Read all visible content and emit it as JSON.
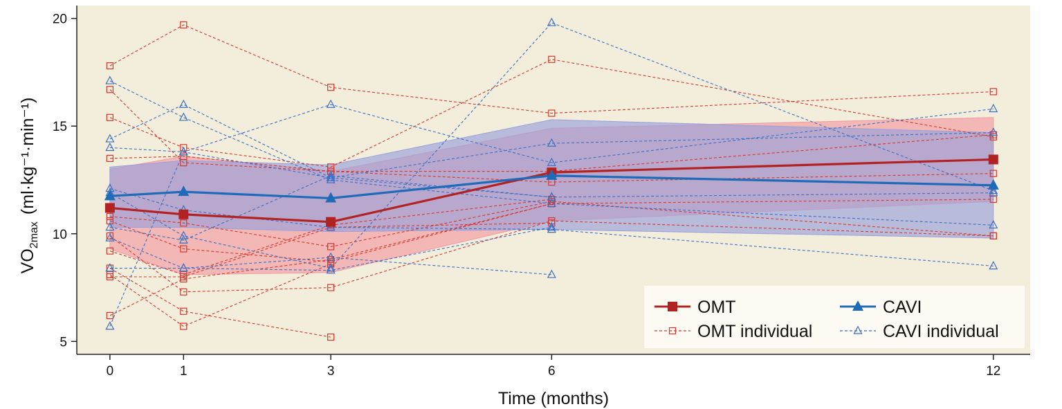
{
  "chart_data": {
    "type": "line",
    "xlabel": "Time (months)",
    "ylabel": {
      "base": "VO",
      "sub": "2max",
      "unit": "(ml·kg⁻¹·min⁻¹)"
    },
    "x_ticks": [
      0,
      1,
      3,
      6,
      12
    ],
    "y_ticks": [
      5,
      10,
      15,
      20
    ],
    "xlim": [
      -0.45,
      12.5
    ],
    "ylim": [
      4.4,
      20.6
    ],
    "colors": {
      "background": "#f2eedb",
      "omt": "#b22222",
      "omt_individual": "#d9352a",
      "omt_band": "#f29aa2",
      "cavi": "#1f6bb8",
      "cavi_individual": "#3a6fc4",
      "cavi_band": "#9aa0db"
    },
    "series": [
      {
        "name": "OMT",
        "x": [
          0,
          1,
          3,
          6,
          12
        ],
        "values": [
          11.2,
          10.9,
          10.55,
          12.85,
          13.45
        ],
        "band_lower": [
          9.3,
          8.1,
          8.2,
          10.6,
          11.5
        ],
        "band_upper": [
          13.0,
          13.6,
          12.9,
          14.9,
          15.4
        ]
      },
      {
        "name": "CAVI",
        "x": [
          0,
          1,
          3,
          6,
          12
        ],
        "values": [
          11.75,
          11.95,
          11.65,
          12.7,
          12.25
        ],
        "band_lower": [
          10.3,
          10.3,
          10.1,
          10.2,
          9.8
        ],
        "band_upper": [
          13.1,
          13.4,
          13.2,
          15.3,
          14.7
        ]
      }
    ],
    "omt_individual": [
      [
        [
          0,
          17.8
        ],
        [
          1,
          19.7
        ],
        [
          3,
          16.8
        ],
        [
          6,
          15.6
        ],
        [
          12,
          16.6
        ]
      ],
      [
        [
          0,
          16.7
        ],
        [
          1,
          13.3
        ],
        [
          3,
          12.9
        ],
        [
          6,
          12.4
        ],
        [
          12,
          12.8
        ]
      ],
      [
        [
          0,
          15.4
        ],
        [
          1,
          14.0
        ],
        [
          3,
          13.1
        ],
        [
          6,
          18.1
        ],
        [
          12,
          14.5
        ]
      ],
      [
        [
          0,
          13.5
        ],
        [
          1,
          13.6
        ],
        [
          3,
          12.9
        ],
        [
          6,
          12.9
        ],
        [
          12,
          14.6
        ]
      ],
      [
        [
          0,
          10.8
        ],
        [
          1,
          10.5
        ],
        [
          3,
          9.4
        ],
        [
          6,
          11.5
        ],
        [
          12,
          9.9
        ]
      ],
      [
        [
          0,
          10.6
        ],
        [
          1,
          9.3
        ],
        [
          3,
          8.7
        ],
        [
          6,
          11.4
        ],
        [
          12,
          11.6
        ]
      ],
      [
        [
          0,
          9.9
        ],
        [
          1,
          7.3
        ],
        [
          3,
          7.5
        ],
        [
          6,
          10.6
        ],
        [
          12,
          9.9
        ]
      ],
      [
        [
          0,
          9.2
        ],
        [
          1,
          8.1
        ],
        [
          3,
          10.4
        ],
        [
          6,
          11.6
        ]
      ],
      [
        [
          0,
          8.4
        ],
        [
          1,
          6.4
        ],
        [
          3,
          5.2
        ]
      ],
      [
        [
          0,
          8.1
        ],
        [
          1,
          5.7
        ],
        [
          3,
          8.6
        ]
      ],
      [
        [
          0,
          8.0
        ],
        [
          1,
          8.0
        ],
        [
          3,
          10.3
        ],
        [
          6,
          10.5
        ]
      ],
      [
        [
          0,
          6.2
        ],
        [
          1,
          7.9
        ],
        [
          3,
          8.8
        ],
        [
          6,
          11.4
        ]
      ]
    ],
    "cavi_individual": [
      [
        [
          0,
          17.1
        ],
        [
          1,
          15.4
        ],
        [
          3,
          12.5
        ],
        [
          6,
          11.4
        ],
        [
          12,
          10.4
        ]
      ],
      [
        [
          0,
          14.4
        ],
        [
          1,
          16.0
        ],
        [
          3,
          12.6
        ],
        [
          6,
          14.2
        ],
        [
          12,
          14.7
        ]
      ],
      [
        [
          0,
          14.0
        ],
        [
          1,
          13.8
        ],
        [
          3,
          16.0
        ],
        [
          6,
          13.3
        ],
        [
          12,
          15.8
        ]
      ],
      [
        [
          0,
          12.1
        ],
        [
          1,
          11.1
        ],
        [
          3,
          10.3
        ],
        [
          6,
          10.2
        ],
        [
          12,
          8.5
        ]
      ],
      [
        [
          0,
          11.9
        ],
        [
          1,
          9.9
        ],
        [
          3,
          8.4
        ],
        [
          6,
          19.8
        ],
        [
          12,
          12.0
        ]
      ],
      [
        [
          0,
          10.3
        ],
        [
          1,
          9.7
        ],
        [
          3,
          12.7
        ],
        [
          6,
          11.7
        ],
        [
          12,
          11.9
        ]
      ],
      [
        [
          0,
          9.8
        ],
        [
          1,
          8.4
        ],
        [
          3,
          8.9
        ],
        [
          6,
          8.1
        ]
      ],
      [
        [
          0,
          8.4
        ],
        [
          1,
          8.4
        ],
        [
          3,
          8.3
        ],
        [
          6,
          10.3
        ]
      ],
      [
        [
          0,
          5.7
        ],
        [
          1,
          13.8
        ],
        [
          3,
          12.6
        ],
        [
          6,
          11.7
        ]
      ]
    ],
    "legend": {
      "position": "bottom-right",
      "entries": [
        {
          "key": "omt",
          "label": "OMT"
        },
        {
          "key": "cavi",
          "label": "CAVI"
        },
        {
          "key": "omt_individual",
          "label": "OMT individual"
        },
        {
          "key": "cavi_individual",
          "label": "CAVI individual"
        }
      ]
    }
  }
}
